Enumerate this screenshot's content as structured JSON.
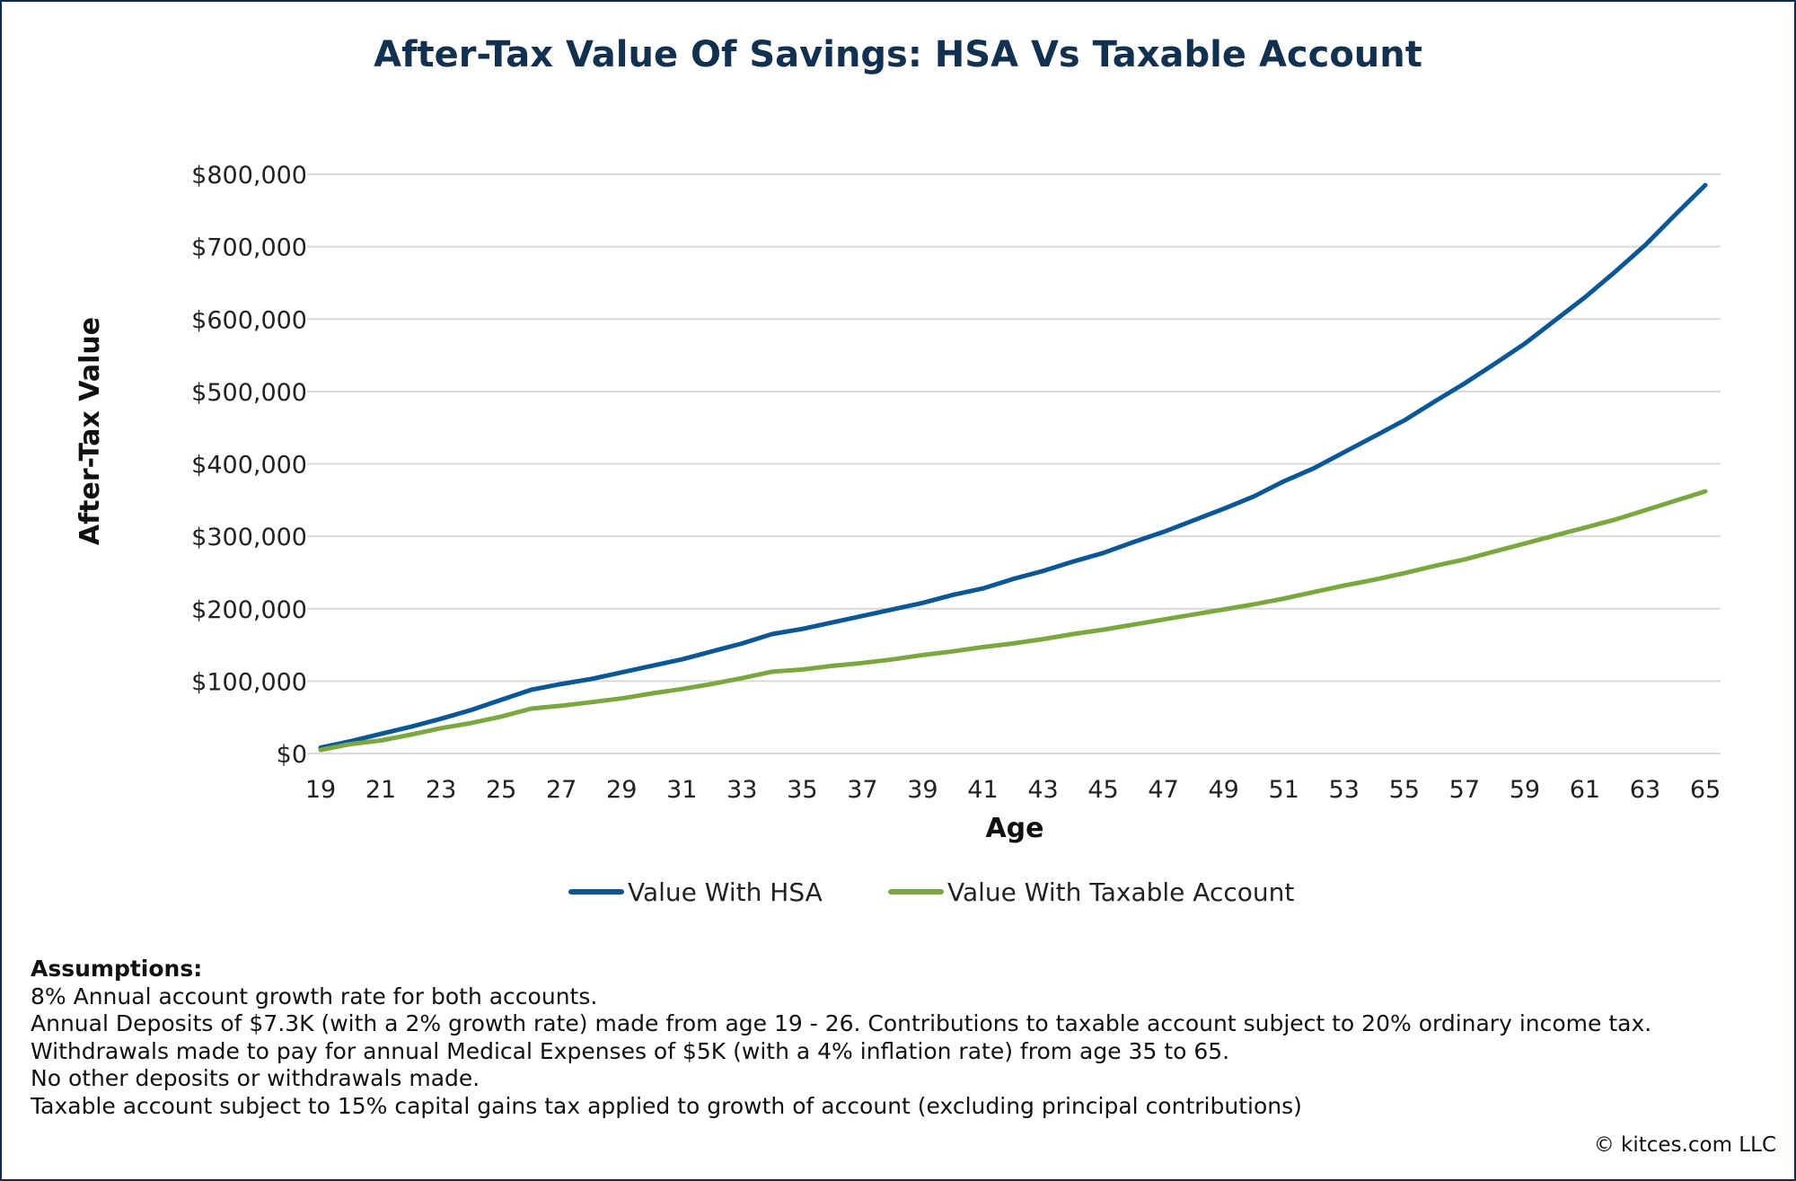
{
  "chart_data": {
    "type": "line",
    "title": "After-Tax Value Of Savings: HSA Vs Taxable Account",
    "xlabel": "Age",
    "ylabel": "After-Tax Value",
    "ylim": [
      0,
      800000
    ],
    "yticks": [
      "$0",
      "$100,000",
      "$200,000",
      "$300,000",
      "$400,000",
      "$500,000",
      "$600,000",
      "$700,000",
      "$800,000"
    ],
    "xticks": [
      "19",
      "21",
      "23",
      "25",
      "27",
      "29",
      "31",
      "33",
      "35",
      "37",
      "39",
      "41",
      "43",
      "45",
      "47",
      "49",
      "51",
      "53",
      "55",
      "57",
      "59",
      "61",
      "63",
      "65"
    ],
    "grid": "horizontal",
    "legend": "bottom",
    "x": [
      19,
      20,
      21,
      22,
      23,
      24,
      25,
      26,
      27,
      28,
      29,
      30,
      31,
      32,
      33,
      34,
      35,
      36,
      37,
      38,
      39,
      40,
      41,
      42,
      43,
      44,
      45,
      46,
      47,
      48,
      49,
      50,
      51,
      52,
      53,
      54,
      55,
      56,
      57,
      58,
      59,
      60,
      61,
      62,
      63,
      64,
      65
    ],
    "series": [
      {
        "name": "Value With HSA",
        "color": "#0a5796",
        "values": [
          8000,
          17000,
          27000,
          37000,
          48000,
          60000,
          74000,
          88000,
          96000,
          103000,
          112000,
          121000,
          130000,
          141000,
          152000,
          165000,
          172000,
          181000,
          190000,
          199000,
          208000,
          219000,
          228000,
          241000,
          252000,
          265000,
          277000,
          292000,
          306000,
          322000,
          338000,
          355000,
          376000,
          394000,
          416000,
          438000,
          460000,
          486000,
          511000,
          538000,
          566000,
          598000,
          630000,
          665000,
          702000,
          744000,
          785000
        ]
      },
      {
        "name": "Value With Taxable Account",
        "color": "#7ba73f",
        "values": [
          5000,
          13000,
          18000,
          26000,
          35000,
          42000,
          51000,
          62000,
          66000,
          71000,
          76000,
          83000,
          89000,
          96000,
          104000,
          113000,
          116000,
          121000,
          125000,
          130000,
          136000,
          141000,
          147000,
          152000,
          158000,
          165000,
          171000,
          178000,
          185000,
          192000,
          199000,
          206000,
          214000,
          223000,
          232000,
          240000,
          249000,
          259000,
          268000,
          279000,
          290000,
          301000,
          312000,
          323000,
          336000,
          349000,
          362000
        ]
      }
    ]
  },
  "notes": {
    "heading": "Assumptions:",
    "lines": [
      "8% Annual account growth rate for both accounts.",
      "Annual Deposits of $7.3K (with a 2% growth rate) made from age 19 - 26. Contributions to taxable account subject to 20% ordinary income tax.",
      "Withdrawals made to pay for annual Medical Expenses of $5K (with a 4% inflation rate) from age 35 to 65.",
      "No other deposits or withdrawals made.",
      "Taxable account subject to 15% capital gains tax applied to growth of account (excluding principal contributions)"
    ]
  },
  "copyright": "© kitces.com LLC"
}
